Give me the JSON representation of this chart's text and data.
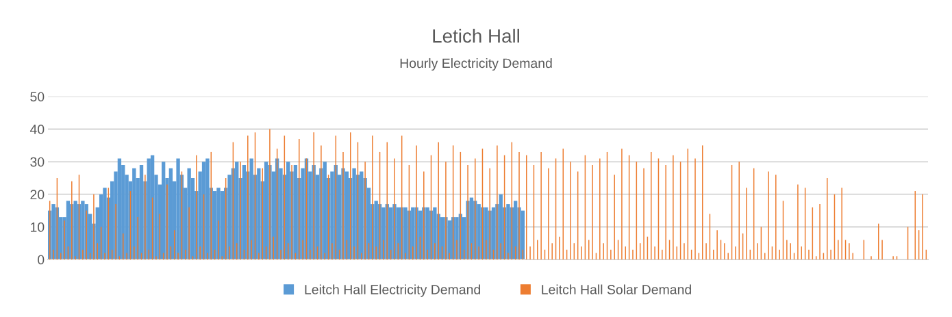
{
  "chart_data": {
    "type": "bar",
    "title": "Letich Hall",
    "subtitle": "Hourly Electricity Demand",
    "categories": [
      null,
      null,
      null,
      null,
      null,
      null,
      null,
      null,
      null,
      null,
      null,
      null,
      null,
      null,
      null,
      null,
      null,
      null,
      null,
      null,
      null,
      null,
      null,
      null,
      null,
      null,
      null,
      null,
      null,
      null,
      null,
      null,
      null,
      null,
      null,
      null,
      null,
      null,
      null,
      null,
      null,
      null,
      null,
      null,
      null,
      null,
      null,
      null,
      null,
      null,
      null,
      null,
      null,
      null,
      null,
      null,
      null,
      null,
      null,
      null,
      null,
      null,
      null,
      null,
      null,
      null,
      null,
      null,
      null,
      null,
      null,
      null,
      null,
      null,
      null,
      null,
      null,
      null,
      null,
      null,
      null,
      null,
      null,
      null,
      null,
      null,
      null,
      null,
      null,
      null,
      null,
      null,
      null,
      null,
      null,
      null,
      null,
      null,
      null,
      null,
      null,
      null,
      null,
      null,
      null,
      null,
      null,
      null,
      null,
      null,
      null,
      null,
      null,
      null,
      null,
      null,
      null,
      null,
      null,
      null,
      null,
      null,
      null,
      null,
      null,
      null,
      null,
      null,
      null,
      null,
      null,
      null,
      null,
      null,
      null,
      null,
      null,
      null,
      null,
      null,
      null,
      null,
      null,
      null,
      null,
      null,
      null,
      null,
      null,
      null,
      null,
      null,
      null,
      null,
      null,
      null,
      null,
      null,
      null,
      null,
      null,
      null,
      null,
      null,
      null,
      null,
      null,
      null,
      null,
      null,
      null,
      null,
      null,
      null,
      null,
      null,
      null,
      null,
      null,
      null,
      null,
      null,
      null,
      null,
      null,
      null,
      null,
      null,
      null,
      null,
      null,
      null,
      null,
      null,
      null,
      null,
      null,
      null,
      null,
      null,
      null,
      null,
      null,
      null,
      null,
      null,
      null,
      null,
      null,
      null,
      null,
      null,
      null,
      null,
      null,
      null,
      null,
      null,
      null,
      null,
      null,
      null,
      null,
      null,
      null,
      null,
      null,
      null,
      null,
      null,
      null,
      null,
      null,
      null,
      null,
      null,
      null,
      null,
      null,
      null
    ],
    "series": [
      {
        "name": "Leitch Hall Electricity Demand",
        "color": "#5b9bd5",
        "values": [
          15,
          17,
          16,
          13,
          13,
          18,
          17,
          18,
          17,
          18,
          17,
          14,
          11,
          16,
          20,
          22,
          19,
          24,
          27,
          31,
          29,
          26,
          24,
          28,
          25,
          29,
          24,
          31,
          32,
          26,
          23,
          30,
          25,
          28,
          24,
          31,
          26,
          22,
          28,
          25,
          21,
          27,
          30,
          31,
          22,
          21,
          22,
          21,
          22,
          26,
          28,
          30,
          25,
          29,
          27,
          31,
          26,
          28,
          24,
          30,
          29,
          27,
          31,
          28,
          26,
          30,
          27,
          29,
          25,
          28,
          31,
          27,
          29,
          26,
          28,
          30,
          25,
          27,
          29,
          26,
          28,
          27,
          25,
          28,
          26,
          27,
          25,
          22,
          17,
          18,
          17,
          16,
          17,
          16,
          17,
          16,
          16,
          16,
          15,
          16,
          16,
          15,
          16,
          16,
          15,
          16,
          14,
          13,
          13,
          12,
          13,
          13,
          14,
          13,
          18,
          19,
          18,
          17,
          16,
          16,
          15,
          16,
          17,
          20,
          16,
          17,
          16,
          18,
          16,
          15,
          null,
          null,
          null,
          null,
          null,
          null,
          null,
          null,
          null,
          null,
          null,
          null,
          null,
          null,
          null,
          null,
          null,
          null,
          null,
          null,
          null,
          null,
          null,
          null,
          null,
          null,
          null,
          null,
          null,
          null,
          null,
          null,
          null,
          null,
          null,
          null,
          null,
          null,
          null,
          null,
          null,
          null,
          null,
          null,
          null,
          null,
          null,
          null,
          null,
          null,
          null,
          null,
          null,
          null,
          null,
          null,
          null,
          null,
          null,
          null,
          null,
          null,
          null,
          null,
          null,
          null,
          null,
          null,
          null,
          null,
          null,
          null,
          null,
          null,
          null,
          null,
          null,
          null,
          null,
          null,
          null,
          null,
          null,
          null,
          null,
          null,
          null,
          null,
          null,
          null,
          null,
          null,
          null,
          null,
          null,
          null,
          null,
          null,
          null,
          null,
          null,
          null,
          null,
          null,
          null,
          null,
          null,
          null,
          null,
          null
        ]
      },
      {
        "name": "Leitch Hall Solar Demand",
        "color": "#ed7d31",
        "values": [
          18,
          3,
          25,
          2,
          12,
          4,
          24,
          1,
          26,
          3,
          15,
          2,
          20,
          5,
          10,
          2,
          22,
          3,
          17,
          1,
          8,
          2,
          21,
          4,
          13,
          2,
          26,
          3,
          19,
          1,
          14,
          2,
          23,
          4,
          9,
          2,
          27,
          3,
          16,
          1,
          32,
          4,
          20,
          2,
          33,
          3,
          12,
          1,
          25,
          4,
          36,
          5,
          30,
          3,
          38,
          6,
          39,
          2,
          28,
          4,
          40,
          7,
          34,
          3,
          38,
          5,
          29,
          2,
          37,
          6,
          31,
          3,
          39,
          4,
          35,
          2,
          26,
          5,
          38,
          3,
          33,
          6,
          39,
          4,
          36,
          2,
          30,
          5,
          38,
          4,
          33,
          6,
          36,
          3,
          31,
          5,
          38,
          2,
          29,
          4,
          35,
          7,
          27,
          3,
          32,
          5,
          36,
          4,
          30,
          2,
          35,
          6,
          33,
          3,
          29,
          5,
          31,
          4,
          34,
          6,
          28,
          3,
          35,
          5,
          32,
          2,
          36,
          4,
          33,
          3,
          32,
          4,
          29,
          6,
          33,
          3,
          28,
          5,
          31,
          7,
          34,
          3,
          30,
          5,
          27,
          4,
          32,
          6,
          29,
          2,
          31,
          5,
          33,
          3,
          26,
          6,
          34,
          4,
          32,
          3,
          30,
          5,
          28,
          7,
          33,
          4,
          31,
          3,
          29,
          6,
          32,
          4,
          30,
          5,
          34,
          3,
          31,
          2,
          35,
          5,
          14,
          3,
          9,
          6,
          5,
          2,
          29,
          4,
          30,
          8,
          22,
          3,
          28,
          5,
          10,
          2,
          27,
          4,
          26,
          3,
          18,
          6,
          5,
          2,
          23,
          4,
          22,
          3,
          16,
          1,
          17,
          2,
          25,
          3,
          20,
          6,
          22,
          6,
          5,
          2,
          0,
          0,
          6,
          0,
          1,
          0,
          11,
          6,
          0,
          0,
          1,
          1,
          0,
          0,
          10,
          0,
          21,
          9,
          20,
          3
        ]
      }
    ],
    "ylim": [
      0,
      50
    ],
    "yticks": [
      0,
      10,
      20,
      30,
      40,
      50
    ],
    "grid": "y",
    "legend": "bottom",
    "tick_labels": "y"
  }
}
